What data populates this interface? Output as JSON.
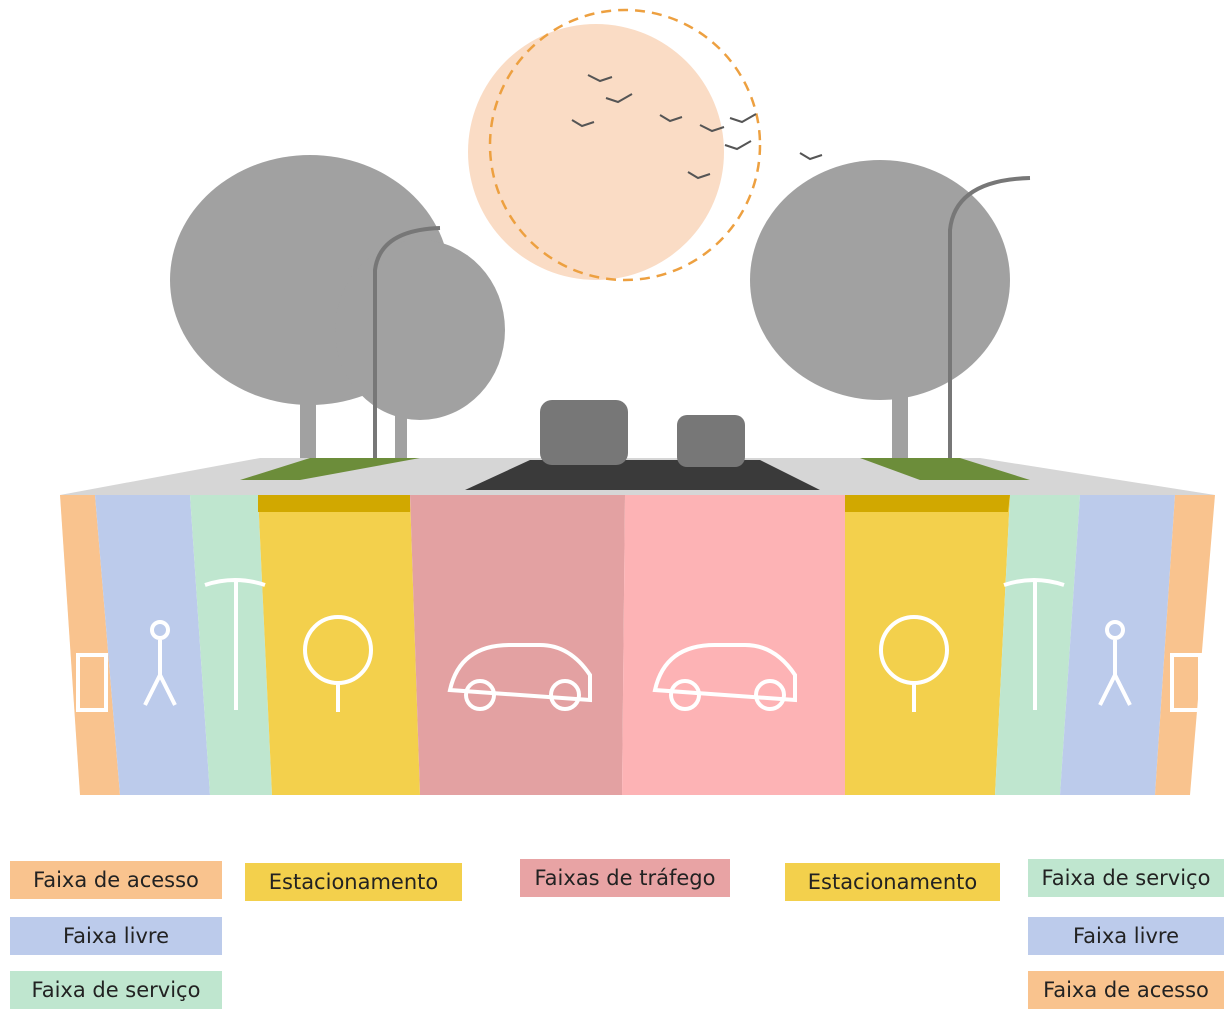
{
  "legend": {
    "left": [
      "Faixa de acesso",
      "Faixa livre",
      "Faixa de serviço"
    ],
    "center": [
      "Estacionamento",
      "Faixas de tráfego",
      "Estacionamento"
    ],
    "right": [
      "Faixa de serviço",
      "Faixa livre",
      "Faixa de acesso"
    ]
  }
}
